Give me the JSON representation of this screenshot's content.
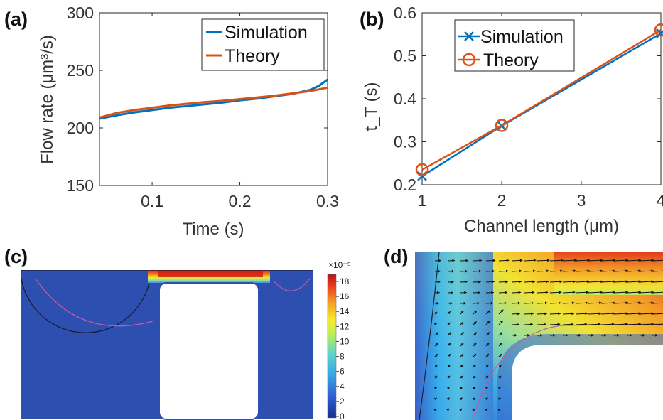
{
  "panel_labels": {
    "a": "(a)",
    "b": "(b)",
    "c": "(c)",
    "d": "(d)"
  },
  "colors": {
    "simulation": "#0072BD",
    "theory": "#D95319"
  },
  "chart_data": [
    {
      "type": "line",
      "panel": "(a)",
      "xlabel": "Time (s)",
      "ylabel": "Flow rate (μm³/s)",
      "xlim": [
        0.04,
        0.3
      ],
      "ylim": [
        150,
        300
      ],
      "xticks": [
        "0.1",
        "0.2",
        "0.3"
      ],
      "yticks": [
        "150",
        "200",
        "250",
        "300"
      ],
      "legend": {
        "position": "top-right",
        "entries": [
          "Simulation",
          "Theory"
        ]
      },
      "series": [
        {
          "name": "Simulation",
          "x": [
            0.04,
            0.06,
            0.08,
            0.1,
            0.12,
            0.14,
            0.16,
            0.18,
            0.2,
            0.22,
            0.24,
            0.26,
            0.28,
            0.29,
            0.3
          ],
          "y": [
            208,
            211,
            213.5,
            215.5,
            217.5,
            219,
            220.5,
            222,
            224,
            225.5,
            227.5,
            229.5,
            233,
            236.5,
            242
          ]
        },
        {
          "name": "Theory",
          "x": [
            0.04,
            0.06,
            0.08,
            0.1,
            0.12,
            0.14,
            0.16,
            0.18,
            0.2,
            0.22,
            0.24,
            0.26,
            0.28,
            0.3
          ],
          "y": [
            209,
            213,
            215.5,
            217.5,
            219.5,
            221,
            222.5,
            223.5,
            225,
            226.5,
            228,
            230,
            232,
            235
          ]
        }
      ]
    },
    {
      "type": "line",
      "panel": "(b)",
      "xlabel": "Channel length (μm)",
      "ylabel": "t_T (s)",
      "xlim": [
        1,
        4
      ],
      "ylim": [
        0.2,
        0.6
      ],
      "xticks": [
        "1",
        "2",
        "3",
        "4"
      ],
      "yticks": [
        "0.2",
        "0.3",
        "0.4",
        "0.5",
        "0.6"
      ],
      "legend": {
        "position": "top-left",
        "entries": [
          "Simulation",
          "Theory"
        ]
      },
      "series": [
        {
          "name": "Simulation",
          "marker": "x",
          "x": [
            1,
            2,
            4
          ],
          "y": [
            0.22,
            0.337,
            0.552
          ]
        },
        {
          "name": "Theory",
          "marker": "o",
          "x": [
            1,
            2,
            4
          ],
          "y": [
            0.235,
            0.338,
            0.56
          ]
        }
      ]
    }
  ],
  "colorbar": {
    "exponent": "×10⁻⁵",
    "ticks": [
      "18",
      "16",
      "14",
      "12",
      "10",
      "8",
      "6",
      "4",
      "2",
      "0"
    ]
  }
}
